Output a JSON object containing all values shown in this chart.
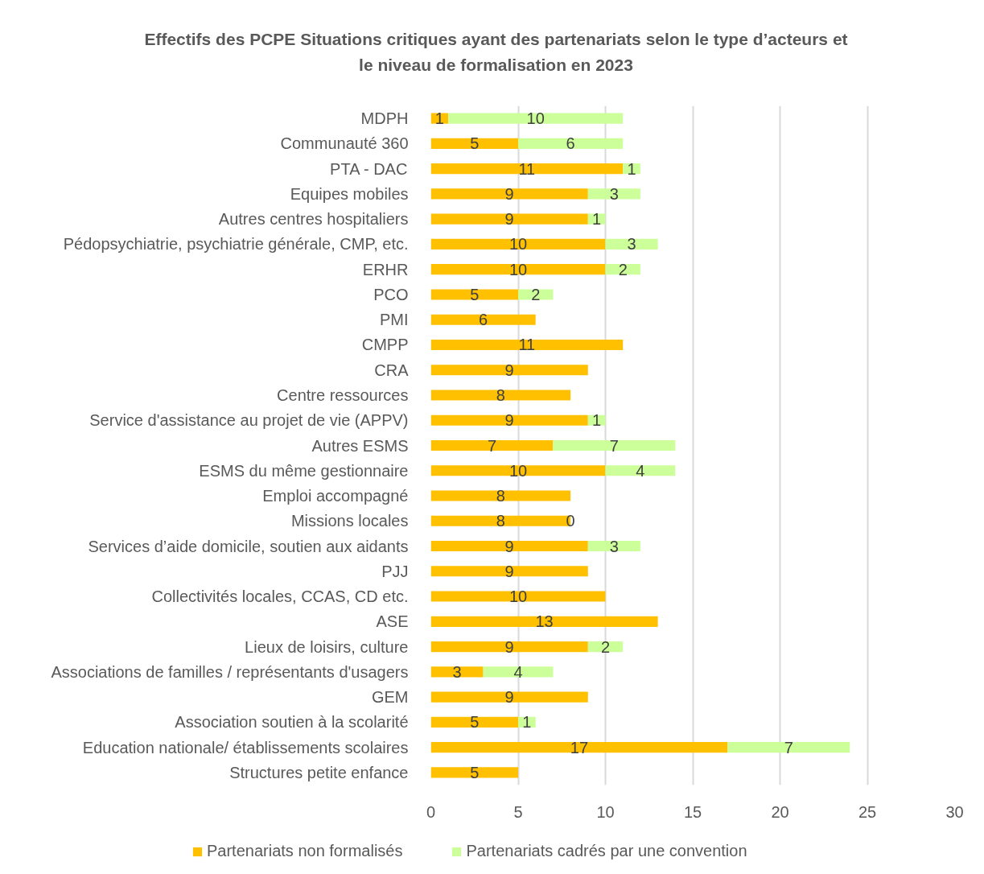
{
  "chart_data": {
    "type": "bar",
    "orientation": "horizontal",
    "stacked": true,
    "title": "Effectifs des PCPE Situations critiques ayant des partenariats selon le type d’acteurs et le niveau de formalisation en 2023",
    "categories": [
      "MDPH",
      "Communauté 360",
      "PTA - DAC",
      "Equipes mobiles",
      "Autres centres hospitaliers",
      "Pédopsychiatrie, psychiatrie générale, CMP, etc.",
      "ERHR",
      "PCO",
      "PMI",
      "CMPP",
      "CRA",
      "Centre ressources",
      "Service d'assistance au projet de vie (APPV)",
      "Autres ESMS",
      "ESMS du même gestionnaire",
      "Emploi accompagné",
      "Missions locales",
      "Services d’aide domicile, soutien aux aidants",
      "PJJ",
      "Collectivités locales, CCAS, CD etc.",
      "ASE",
      "Lieux de loisirs, culture",
      "Associations de familles / représentants d'usagers",
      "GEM",
      "Association soutien à la scolarité",
      "Education nationale/ établissements scolaires",
      "Structures petite enfance"
    ],
    "series": [
      {
        "name": "Partenariats non formalisés",
        "color": "#ffc000",
        "values": [
          1,
          5,
          11,
          9,
          9,
          10,
          10,
          5,
          6,
          11,
          9,
          8,
          9,
          7,
          10,
          8,
          8,
          9,
          9,
          10,
          13,
          9,
          3,
          9,
          5,
          17,
          5
        ]
      },
      {
        "name": "Partenariats cadrés par une convention",
        "color": "#ccff99",
        "values": [
          10,
          6,
          1,
          3,
          1,
          3,
          2,
          2,
          null,
          null,
          null,
          null,
          1,
          7,
          4,
          null,
          0,
          3,
          null,
          null,
          null,
          2,
          4,
          null,
          1,
          7,
          null
        ]
      }
    ],
    "xlim": [
      0,
      30
    ],
    "xticks": [
      0,
      5,
      10,
      15,
      20,
      25,
      30
    ],
    "grid": "x",
    "legend": "bottom",
    "data_labels": true
  }
}
